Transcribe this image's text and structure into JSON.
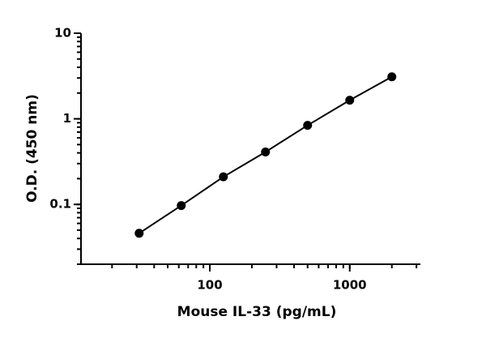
{
  "chart_data": {
    "type": "scatter_line",
    "x_label": "Mouse IL-33 (pg/mL)",
    "y_label": "O.D. (450 nm)",
    "x": [
      31.25,
      62.5,
      125,
      250,
      500,
      1000,
      2000
    ],
    "series": [
      {
        "color": "#000000",
        "values": [
          0.046,
          0.097,
          0.21,
          0.41,
          0.84,
          1.65,
          3.1
        ]
      }
    ],
    "xlim": [
      12,
      3200
    ],
    "ylim": [
      0.02,
      10
    ],
    "xticks": [
      100,
      1000
    ],
    "yticks": [
      0.1,
      1,
      10
    ],
    "x_log": true,
    "y_log": true,
    "minor_ticks": true
  }
}
